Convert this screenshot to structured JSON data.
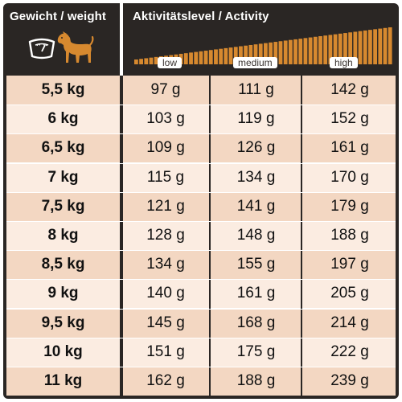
{
  "header": {
    "weight_title": "Gewicht / weight",
    "activity_title": "Aktivitätslevel / Activity",
    "levels": {
      "low": "low",
      "medium": "medium",
      "high": "high"
    },
    "icons": {
      "scale": "scale-icon",
      "dog": "dog-icon",
      "ramp": "activity-ramp-icon"
    }
  },
  "colors": {
    "header_bg": "#2a2624",
    "accent_orange": "#d7892f",
    "row_odd": "#f3d7c2",
    "row_even": "#fbece1"
  },
  "rows": [
    {
      "weight": "5,5 kg",
      "low": "97 g",
      "medium": "111 g",
      "high": "142 g"
    },
    {
      "weight": "6 kg",
      "low": "103 g",
      "medium": "119 g",
      "high": "152 g"
    },
    {
      "weight": "6,5 kg",
      "low": "109 g",
      "medium": "126 g",
      "high": "161 g"
    },
    {
      "weight": "7 kg",
      "low": "115 g",
      "medium": "134 g",
      "high": "170 g"
    },
    {
      "weight": "7,5 kg",
      "low": "121 g",
      "medium": "141 g",
      "high": "179 g"
    },
    {
      "weight": "8 kg",
      "low": "128 g",
      "medium": "148 g",
      "high": "188 g"
    },
    {
      "weight": "8,5 kg",
      "low": "134 g",
      "medium": "155 g",
      "high": "197 g"
    },
    {
      "weight": "9 kg",
      "low": "140 g",
      "medium": "161 g",
      "high": "205 g"
    },
    {
      "weight": "9,5 kg",
      "low": "145 g",
      "medium": "168 g",
      "high": "214 g"
    },
    {
      "weight": "10 kg",
      "low": "151 g",
      "medium": "175 g",
      "high": "222 g"
    },
    {
      "weight": "11 kg",
      "low": "162 g",
      "medium": "188 g",
      "high": "239 g"
    }
  ]
}
